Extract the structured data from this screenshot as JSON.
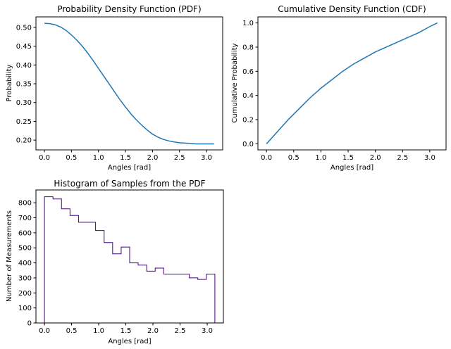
{
  "chart_data": [
    {
      "id": "pdf",
      "type": "line",
      "title": "Probability Density Function (PDF)",
      "xlabel": "Angles [rad]",
      "ylabel": "Probability",
      "xlim": [
        -0.157,
        3.299
      ],
      "ylim": [
        0.174,
        0.528
      ],
      "xticks": [
        0.0,
        0.5,
        1.0,
        1.5,
        2.0,
        2.5,
        3.0
      ],
      "xtick_labels": [
        "0.0",
        "0.5",
        "1.0",
        "1.5",
        "2.0",
        "2.5",
        "3.0"
      ],
      "yticks": [
        0.2,
        0.25,
        0.3,
        0.35,
        0.4,
        0.45,
        0.5
      ],
      "ytick_labels": [
        "0.20",
        "0.25",
        "0.30",
        "0.35",
        "0.40",
        "0.45",
        "0.50"
      ],
      "series": [
        {
          "color": "#1f77b4",
          "x": [
            0.0,
            0.1,
            0.2,
            0.3,
            0.4,
            0.5,
            0.6,
            0.7,
            0.8,
            0.9,
            1.0,
            1.1,
            1.2,
            1.3,
            1.4,
            1.5,
            1.6,
            1.7,
            1.8,
            1.9,
            2.0,
            2.1,
            2.2,
            2.3,
            2.4,
            2.5,
            2.6,
            2.7,
            2.8,
            2.9,
            3.0,
            3.14
          ],
          "y": [
            0.511,
            0.51,
            0.507,
            0.501,
            0.492,
            0.48,
            0.466,
            0.45,
            0.432,
            0.412,
            0.391,
            0.37,
            0.349,
            0.328,
            0.307,
            0.288,
            0.27,
            0.254,
            0.24,
            0.227,
            0.216,
            0.208,
            0.202,
            0.198,
            0.195,
            0.193,
            0.192,
            0.191,
            0.19,
            0.19,
            0.19,
            0.19
          ]
        }
      ]
    },
    {
      "id": "cdf",
      "type": "line",
      "title": "Cumulative Density Function (CDF)",
      "xlabel": "Angles [rad]",
      "ylabel": "Cumulative Probability",
      "xlim": [
        -0.157,
        3.299
      ],
      "ylim": [
        -0.05,
        1.05
      ],
      "xticks": [
        0.0,
        0.5,
        1.0,
        1.5,
        2.0,
        2.5,
        3.0
      ],
      "xtick_labels": [
        "0.0",
        "0.5",
        "1.0",
        "1.5",
        "2.0",
        "2.5",
        "3.0"
      ],
      "yticks": [
        0.0,
        0.2,
        0.4,
        0.6,
        0.8,
        1.0
      ],
      "ytick_labels": [
        "0.0",
        "0.2",
        "0.4",
        "0.6",
        "0.8",
        "1.0"
      ],
      "series": [
        {
          "color": "#1f77b4",
          "x": [
            0.0,
            0.2,
            0.4,
            0.6,
            0.8,
            1.0,
            1.2,
            1.4,
            1.6,
            1.8,
            2.0,
            2.2,
            2.4,
            2.6,
            2.8,
            3.0,
            3.14
          ],
          "y": [
            0.0,
            0.1,
            0.2,
            0.29,
            0.38,
            0.46,
            0.53,
            0.6,
            0.66,
            0.71,
            0.76,
            0.8,
            0.84,
            0.88,
            0.92,
            0.97,
            1.0
          ]
        }
      ]
    },
    {
      "id": "hist",
      "type": "bar",
      "title": "Histogram of Samples from the PDF",
      "xlabel": "Angles [rad]",
      "ylabel": "Number of Measurements",
      "xlim": [
        -0.157,
        3.299
      ],
      "ylim": [
        0,
        885
      ],
      "xticks": [
        0.0,
        0.5,
        1.0,
        1.5,
        2.0,
        2.5,
        3.0
      ],
      "xtick_labels": [
        "0.0",
        "0.5",
        "1.0",
        "1.5",
        "2.0",
        "2.5",
        "3.0"
      ],
      "yticks": [
        0,
        100,
        200,
        300,
        400,
        500,
        600,
        700,
        800
      ],
      "ytick_labels": [
        "0",
        "100",
        "200",
        "300",
        "400",
        "500",
        "600",
        "700",
        "800"
      ],
      "histtype": "step",
      "color": "#4b0082",
      "bin_edges": [
        0.0,
        0.157,
        0.314,
        0.471,
        0.628,
        0.785,
        0.942,
        1.1,
        1.257,
        1.414,
        1.571,
        1.728,
        1.885,
        2.042,
        2.199,
        2.356,
        2.513,
        2.67,
        2.827,
        2.985,
        3.142
      ],
      "counts": [
        840,
        825,
        760,
        715,
        670,
        670,
        615,
        535,
        460,
        505,
        400,
        385,
        345,
        365,
        325,
        325,
        325,
        300,
        290,
        325
      ]
    }
  ]
}
